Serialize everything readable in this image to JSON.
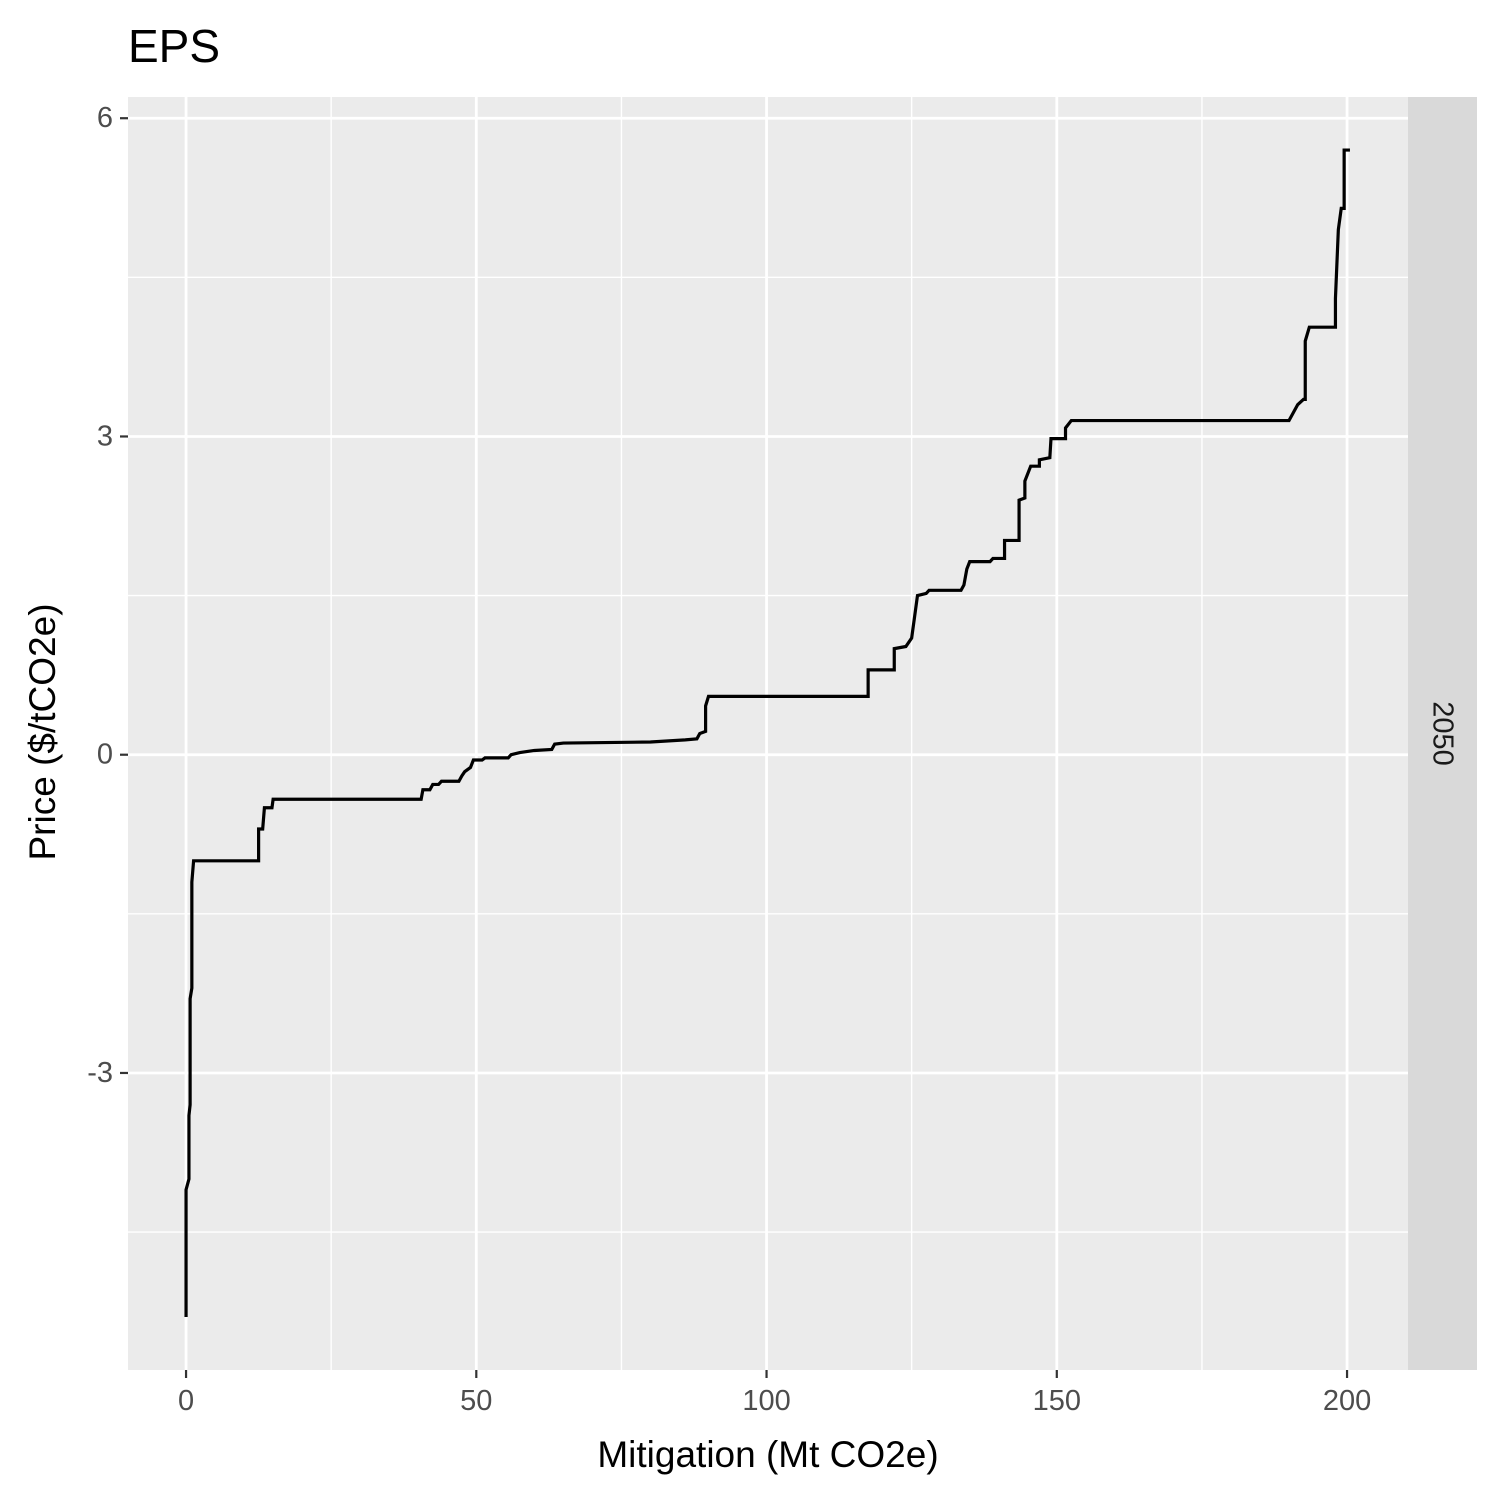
{
  "chart_data": {
    "type": "line",
    "line_style": "step",
    "title": "EPS",
    "xlabel": "Mitigation (Mt CO2e)",
    "ylabel": "Price ($/tCO2e)",
    "facet_label": "2050",
    "xlim": [
      -10,
      210.5
    ],
    "ylim": [
      -5.8,
      6.2
    ],
    "x_ticks": [
      0,
      50,
      100,
      150,
      200
    ],
    "x_tick_labels": [
      "0",
      "50",
      "100",
      "150",
      "200"
    ],
    "x_minor_ticks": [
      25,
      75,
      125,
      175
    ],
    "y_ticks": [
      -3,
      0,
      3,
      6
    ],
    "y_tick_labels": [
      "-3",
      "0",
      "3",
      "6"
    ],
    "y_minor_ticks": [
      -4.5,
      -1.5,
      1.5,
      4.5
    ],
    "grid": true,
    "colors": {
      "panel_background": "#ebebeb",
      "grid_line": "#ffffff",
      "strip_background": "#d9d9d9",
      "line": "#000000",
      "tick_label": "#4d4d4d"
    },
    "series": [
      {
        "points": [
          [
            0.0,
            -5.3
          ],
          [
            0.0,
            -4.1
          ],
          [
            0.5,
            -4.0
          ],
          [
            0.5,
            -3.4
          ],
          [
            0.7,
            -3.3
          ],
          [
            0.7,
            -2.3
          ],
          [
            1.0,
            -2.2
          ],
          [
            1.0,
            -1.2
          ],
          [
            1.3,
            -1.0
          ],
          [
            12.5,
            -1.0
          ],
          [
            12.5,
            -0.7
          ],
          [
            13.2,
            -0.7
          ],
          [
            13.5,
            -0.5
          ],
          [
            14.8,
            -0.5
          ],
          [
            15.0,
            -0.42
          ],
          [
            40.5,
            -0.42
          ],
          [
            40.8,
            -0.33
          ],
          [
            42.0,
            -0.33
          ],
          [
            42.5,
            -0.28
          ],
          [
            43.5,
            -0.28
          ],
          [
            44.0,
            -0.25
          ],
          [
            47.0,
            -0.25
          ],
          [
            47.5,
            -0.2
          ],
          [
            48.0,
            -0.16
          ],
          [
            49.0,
            -0.12
          ],
          [
            49.5,
            -0.05
          ],
          [
            51.0,
            -0.05
          ],
          [
            51.5,
            -0.03
          ],
          [
            55.5,
            -0.03
          ],
          [
            56.0,
            0.0
          ],
          [
            57.5,
            0.02
          ],
          [
            60.0,
            0.04
          ],
          [
            63.0,
            0.05
          ],
          [
            63.5,
            0.1
          ],
          [
            65.0,
            0.11
          ],
          [
            80.0,
            0.12
          ],
          [
            86.0,
            0.14
          ],
          [
            88.0,
            0.15
          ],
          [
            88.5,
            0.2
          ],
          [
            89.5,
            0.22
          ],
          [
            89.5,
            0.46
          ],
          [
            90.0,
            0.55
          ],
          [
            117.5,
            0.55
          ],
          [
            117.5,
            0.8
          ],
          [
            122.0,
            0.8
          ],
          [
            122.0,
            1.0
          ],
          [
            124.0,
            1.02
          ],
          [
            125.0,
            1.1
          ],
          [
            125.5,
            1.3
          ],
          [
            126.0,
            1.5
          ],
          [
            127.5,
            1.52
          ],
          [
            128.0,
            1.55
          ],
          [
            133.5,
            1.55
          ],
          [
            134.0,
            1.6
          ],
          [
            134.5,
            1.75
          ],
          [
            135.0,
            1.82
          ],
          [
            138.5,
            1.82
          ],
          [
            139.0,
            1.85
          ],
          [
            141.0,
            1.85
          ],
          [
            141.0,
            2.02
          ],
          [
            143.5,
            2.02
          ],
          [
            143.5,
            2.4
          ],
          [
            144.5,
            2.42
          ],
          [
            144.5,
            2.58
          ],
          [
            145.5,
            2.72
          ],
          [
            147.0,
            2.72
          ],
          [
            147.0,
            2.78
          ],
          [
            148.8,
            2.8
          ],
          [
            149.0,
            2.98
          ],
          [
            151.5,
            2.98
          ],
          [
            151.5,
            3.08
          ],
          [
            152.5,
            3.15
          ],
          [
            190.0,
            3.15
          ],
          [
            190.5,
            3.2
          ],
          [
            191.5,
            3.3
          ],
          [
            192.5,
            3.35
          ],
          [
            192.8,
            3.35
          ],
          [
            192.8,
            3.9
          ],
          [
            193.5,
            4.03
          ],
          [
            198.0,
            4.03
          ],
          [
            198.0,
            4.3
          ],
          [
            198.5,
            4.95
          ],
          [
            199.0,
            5.15
          ],
          [
            199.5,
            5.15
          ],
          [
            199.5,
            5.7
          ],
          [
            200.5,
            5.7
          ]
        ]
      }
    ]
  }
}
